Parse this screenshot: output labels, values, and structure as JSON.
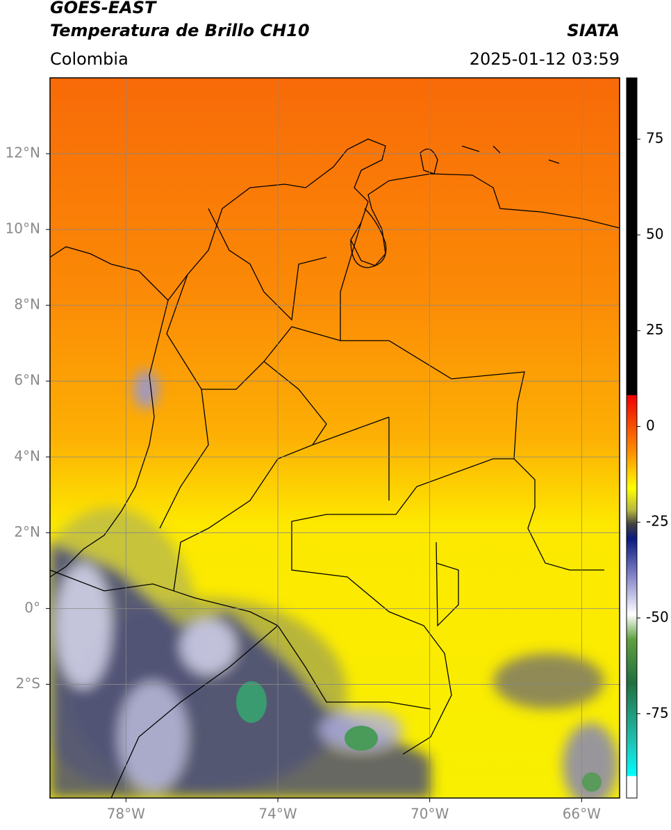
{
  "header": {
    "title": "GOES-EAST",
    "subtitle": "Temperatura de Brillo CH10",
    "region": "Colombia",
    "source": "SIATA",
    "datetime": "2025-01-12 03:59"
  },
  "map": {
    "xlim": [
      -80,
      -65
    ],
    "ylim": [
      -5,
      14
    ],
    "xticks": [
      {
        "value": -78,
        "label": "78°W"
      },
      {
        "value": -74,
        "label": "74°W"
      },
      {
        "value": -70,
        "label": "70°W"
      },
      {
        "value": -66,
        "label": "66°W"
      }
    ],
    "yticks": [
      {
        "value": 12,
        "label": "12°N"
      },
      {
        "value": 10,
        "label": "10°N"
      },
      {
        "value": 8,
        "label": "8°N"
      },
      {
        "value": 6,
        "label": "6°N"
      },
      {
        "value": 4,
        "label": "4°N"
      },
      {
        "value": 2,
        "label": "2°N"
      },
      {
        "value": 0,
        "label": "0°"
      },
      {
        "value": -2,
        "label": "2°S"
      }
    ],
    "grid": true
  },
  "colorbar": {
    "lim": [
      -97,
      91
    ],
    "ticks": [
      75,
      50,
      25,
      0,
      -25,
      -50,
      -75
    ]
  }
}
